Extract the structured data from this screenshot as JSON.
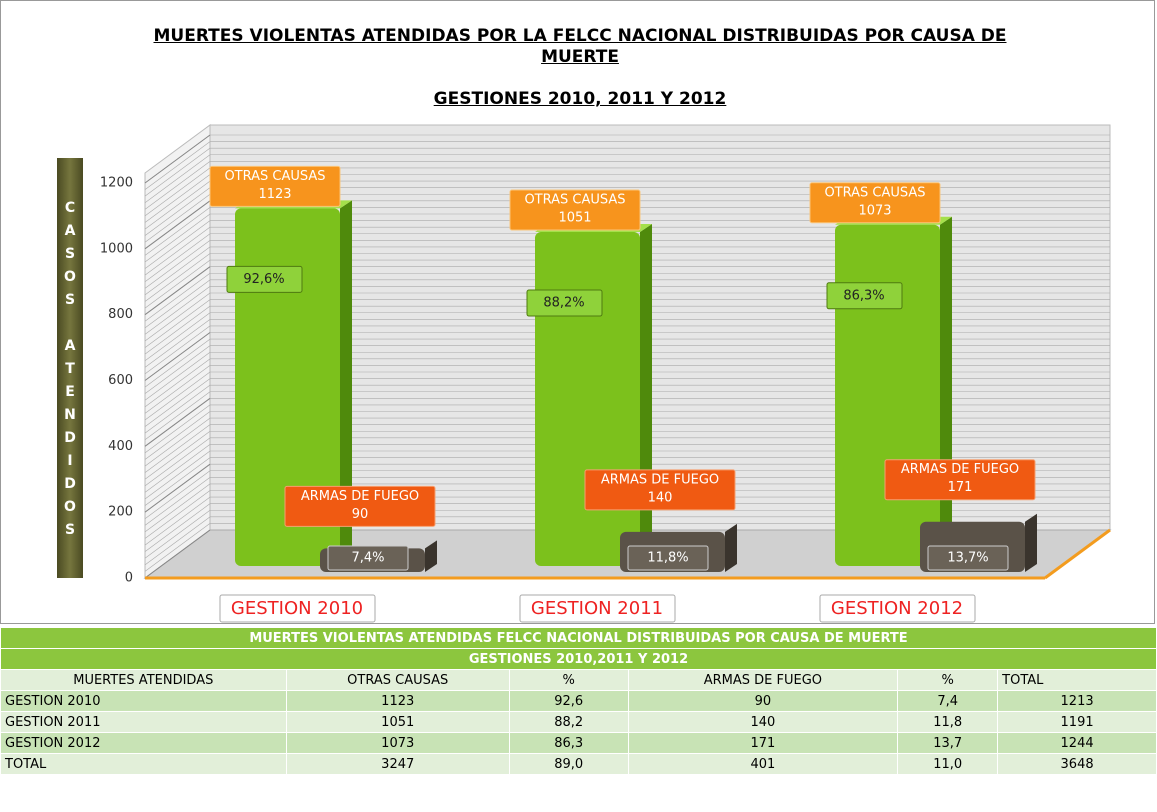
{
  "chart_data": {
    "type": "bar3d",
    "title": "MUERTES VIOLENTAS ATENDIDAS POR LA FELCC NACIONAL DISTRIBUIDAS POR CAUSA DE MUERTE",
    "subtitle": "GESTIONES 2010, 2011 Y 2012",
    "y_label": "CASOS ATENDIDOS",
    "categories": [
      "GESTION 2010",
      "GESTION 2011",
      "GESTION 2012"
    ],
    "series": [
      {
        "name": "OTRAS CAUSAS",
        "color": "#7cc11c",
        "values": [
          1123,
          1051,
          1073
        ],
        "percent_labels": [
          "92,6%",
          "88,2%",
          "86,3%"
        ]
      },
      {
        "name": "ARMAS DE FUEGO",
        "color": "#5a5248",
        "values": [
          90,
          140,
          171
        ],
        "percent_labels": [
          "7,4%",
          "11,8%",
          "13,7%"
        ]
      }
    ],
    "ylim": [
      0,
      1200
    ],
    "yticks": [
      0,
      200,
      400,
      600,
      800,
      1000,
      1200
    ],
    "grid": true
  },
  "table": {
    "title": "MUERTES VIOLENTAS ATENDIDAS FELCC NACIONAL DISTRIBUIDAS POR CAUSA DE MUERTE",
    "subtitle": "GESTIONES 2010,2011 Y 2012",
    "columns": [
      "MUERTES ATENDIDAS",
      "OTRAS CAUSAS",
      "%",
      "ARMAS DE FUEGO",
      "%",
      "TOTAL"
    ],
    "rows": [
      [
        "GESTION 2010",
        "1123",
        "92,6",
        "90",
        "7,4",
        "1213"
      ],
      [
        "GESTION 2011",
        "1051",
        "88,2",
        "140",
        "11,8",
        "1191"
      ],
      [
        "GESTION 2012",
        "1073",
        "86,3",
        "171",
        "13,7",
        "1244"
      ],
      [
        "TOTAL",
        "3247",
        "89,0",
        "401",
        "11,0",
        "3648"
      ]
    ]
  }
}
